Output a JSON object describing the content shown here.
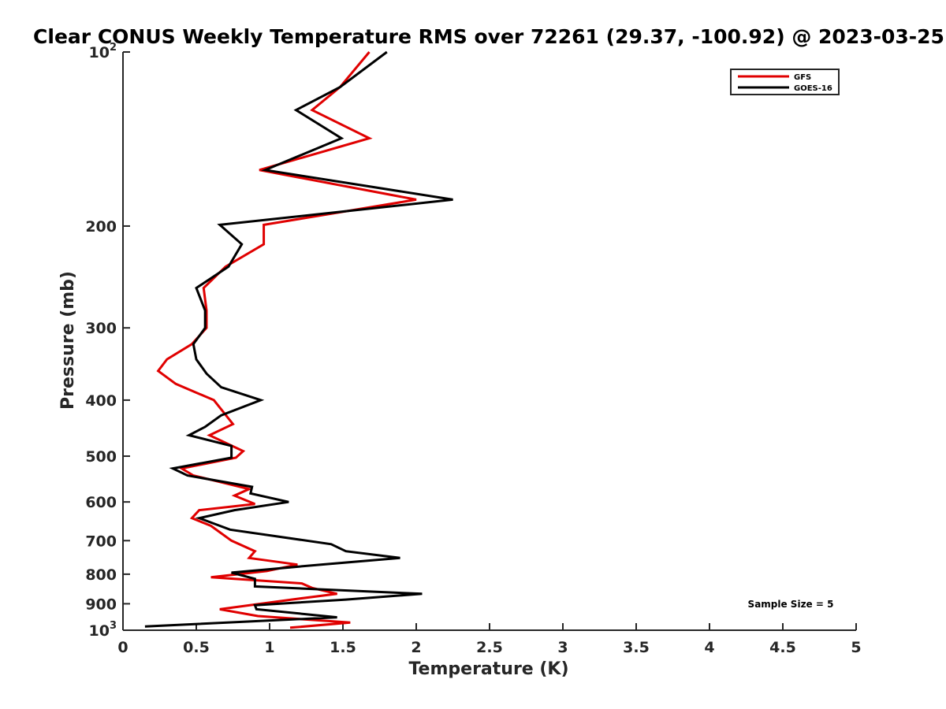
{
  "chart_data": {
    "type": "line",
    "title": "Clear CONUS Weekly Temperature RMS over 72261 (29.37, -100.92) @ 2023-03-25",
    "xlabel": "Temperature (K)",
    "ylabel": "Pressure (mb)",
    "xlim": [
      0,
      5
    ],
    "ylim": [
      100,
      1000
    ],
    "y_scale": "log",
    "y_reversed": true,
    "x_ticks": [
      "0",
      "0.5",
      "1",
      "1.5",
      "2",
      "2.5",
      "3",
      "3.5",
      "4",
      "4.5",
      "5"
    ],
    "y_ticks": [
      {
        "value": 100,
        "label": "10",
        "sup": "2"
      },
      {
        "value": 200,
        "label": "200",
        "sup": ""
      },
      {
        "value": 300,
        "label": "300",
        "sup": ""
      },
      {
        "value": 400,
        "label": "400",
        "sup": ""
      },
      {
        "value": 500,
        "label": "500",
        "sup": ""
      },
      {
        "value": 600,
        "label": "600",
        "sup": ""
      },
      {
        "value": 700,
        "label": "700",
        "sup": ""
      },
      {
        "value": 800,
        "label": "800",
        "sup": ""
      },
      {
        "value": 900,
        "label": "900",
        "sup": ""
      },
      {
        "value": 1000,
        "label": "10",
        "sup": "3"
      }
    ],
    "grid": false,
    "legend_position": "top-right",
    "annotation": "Sample Size = 5",
    "series": [
      {
        "name": "GFS",
        "color": "#e00000",
        "points": [
          [
            1.68,
            100
          ],
          [
            1.48,
            115
          ],
          [
            1.29,
            126
          ],
          [
            1.68,
            141
          ],
          [
            0.93,
            160
          ],
          [
            2.0,
            180
          ],
          [
            0.96,
            199
          ],
          [
            0.96,
            215
          ],
          [
            0.7,
            235
          ],
          [
            0.55,
            256
          ],
          [
            0.57,
            280
          ],
          [
            0.57,
            300
          ],
          [
            0.47,
            320
          ],
          [
            0.3,
            340
          ],
          [
            0.24,
            356
          ],
          [
            0.36,
            375
          ],
          [
            0.62,
            400
          ],
          [
            0.75,
            440
          ],
          [
            0.59,
            460
          ],
          [
            0.82,
            490
          ],
          [
            0.77,
            503
          ],
          [
            0.4,
            525
          ],
          [
            0.48,
            540
          ],
          [
            0.86,
            570
          ],
          [
            0.76,
            585
          ],
          [
            0.9,
            605
          ],
          [
            0.52,
            620
          ],
          [
            0.47,
            640
          ],
          [
            0.6,
            660
          ],
          [
            0.74,
            700
          ],
          [
            0.9,
            730
          ],
          [
            0.86,
            750
          ],
          [
            1.19,
            770
          ],
          [
            0.98,
            790
          ],
          [
            0.6,
            810
          ],
          [
            1.22,
            830
          ],
          [
            1.29,
            845
          ],
          [
            1.46,
            865
          ],
          [
            1.15,
            885
          ],
          [
            0.66,
            920
          ],
          [
            0.92,
            945
          ],
          [
            1.55,
            970
          ],
          [
            1.14,
            990
          ]
        ]
      },
      {
        "name": "GOES-16",
        "color": "#000000",
        "points": [
          [
            1.8,
            100
          ],
          [
            1.48,
            115
          ],
          [
            1.18,
            126
          ],
          [
            1.49,
            141
          ],
          [
            0.97,
            160
          ],
          [
            2.25,
            180
          ],
          [
            0.66,
            199
          ],
          [
            0.81,
            215
          ],
          [
            0.72,
            235
          ],
          [
            0.5,
            256
          ],
          [
            0.56,
            280
          ],
          [
            0.56,
            300
          ],
          [
            0.48,
            320
          ],
          [
            0.5,
            340
          ],
          [
            0.57,
            360
          ],
          [
            0.67,
            380
          ],
          [
            0.94,
            400
          ],
          [
            0.67,
            425
          ],
          [
            0.56,
            445
          ],
          [
            0.45,
            460
          ],
          [
            0.74,
            480
          ],
          [
            0.74,
            503
          ],
          [
            0.34,
            525
          ],
          [
            0.44,
            540
          ],
          [
            0.88,
            565
          ],
          [
            0.87,
            580
          ],
          [
            1.13,
            600
          ],
          [
            0.76,
            620
          ],
          [
            0.52,
            640
          ],
          [
            0.73,
            670
          ],
          [
            1.42,
            710
          ],
          [
            1.52,
            730
          ],
          [
            1.89,
            750
          ],
          [
            1.35,
            770
          ],
          [
            0.74,
            795
          ],
          [
            0.9,
            815
          ],
          [
            0.9,
            840
          ],
          [
            2.04,
            865
          ],
          [
            1.52,
            885
          ],
          [
            0.9,
            905
          ],
          [
            0.91,
            920
          ],
          [
            1.46,
            950
          ],
          [
            0.15,
            985
          ]
        ]
      }
    ]
  }
}
